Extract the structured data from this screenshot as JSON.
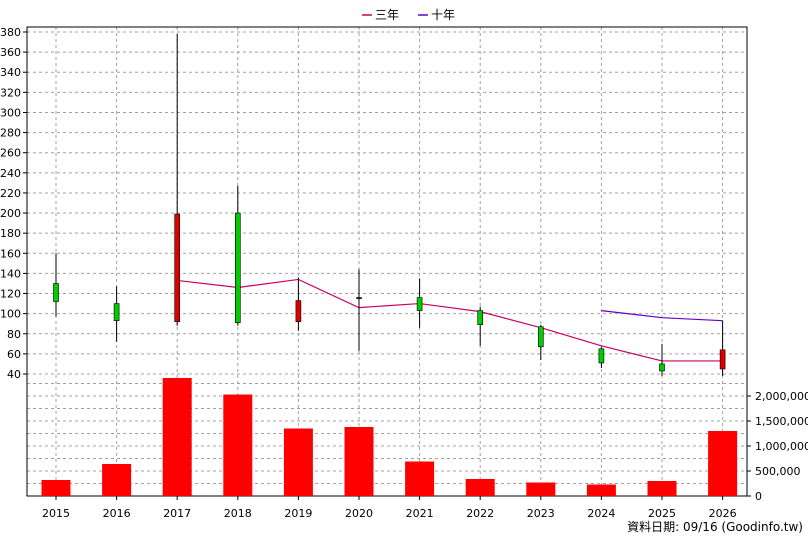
{
  "chart_data": {
    "type": "candlestick",
    "categories": [
      "2015",
      "2016",
      "2017",
      "2018",
      "2019",
      "2020",
      "2021",
      "2022",
      "2023",
      "2024",
      "2025",
      "2026"
    ],
    "legend": {
      "placement": "top-center",
      "items": [
        {
          "label": "三年",
          "color": "#cc0066"
        },
        {
          "label": "十年",
          "color": "#6600cc"
        }
      ]
    },
    "price_axis": {
      "ticks": [
        40,
        60,
        80,
        100,
        120,
        140,
        160,
        180,
        200,
        220,
        240,
        260,
        280,
        300,
        320,
        340,
        360,
        380
      ],
      "ylim": [
        40,
        380
      ]
    },
    "volume_axis": {
      "ticks": [
        "0",
        "500,000",
        "1,000,000",
        "1,500,000",
        "2,000,000"
      ],
      "tick_values": [
        0,
        500000,
        1000000,
        1500000,
        2000000
      ],
      "ylim": [
        0,
        2400000
      ]
    },
    "candles": [
      {
        "year": "2015",
        "open": 112,
        "close": 130,
        "high": 160,
        "low": 97,
        "color": "#00cc00"
      },
      {
        "year": "2016",
        "open": 93,
        "close": 110,
        "high": 127,
        "low": 72,
        "color": "#00cc00"
      },
      {
        "year": "2017",
        "open": 92,
        "close": 199,
        "high": 378,
        "low": 88,
        "color": "#dd0000"
      },
      {
        "year": "2018",
        "open": 91,
        "close": 200,
        "high": 227,
        "low": 88,
        "color": "#00cc00"
      },
      {
        "year": "2019",
        "open": 113,
        "close": 92,
        "high": 136,
        "low": 83,
        "color": "#dd0000"
      },
      {
        "year": "2020",
        "open": 116,
        "close": 115,
        "high": 144,
        "low": 63,
        "color": "#000000"
      },
      {
        "year": "2021",
        "open": 103,
        "close": 116,
        "high": 135,
        "low": 86,
        "color": "#00cc00"
      },
      {
        "year": "2022",
        "open": 89,
        "close": 103,
        "high": 107,
        "low": 68,
        "color": "#00cc00"
      },
      {
        "year": "2023",
        "open": 67,
        "close": 87,
        "high": 89,
        "low": 54,
        "color": "#00cc00"
      },
      {
        "year": "2024",
        "open": 51,
        "close": 65,
        "high": 67,
        "low": 46,
        "color": "#00cc00"
      },
      {
        "year": "2025",
        "open": 43,
        "close": 50,
        "high": 70,
        "low": 38,
        "color": "#00cc00"
      },
      {
        "year": "2026",
        "open": 64,
        "close": 45,
        "high": 93,
        "low": 38,
        "color": "#dd0000"
      }
    ],
    "series": [
      {
        "name": "三年",
        "color": "#cc0066",
        "points": [
          [
            "2017",
            133
          ],
          [
            "2018",
            126
          ],
          [
            "2019",
            134
          ],
          [
            "2020",
            106
          ],
          [
            "2021",
            110
          ],
          [
            "2022",
            102
          ],
          [
            "2023",
            86
          ],
          [
            "2024",
            68
          ],
          [
            "2025",
            53
          ],
          [
            "2026",
            53
          ]
        ]
      },
      {
        "name": "十年",
        "color": "#6600cc",
        "points": [
          [
            "2024",
            103
          ],
          [
            "2025",
            96
          ],
          [
            "2026",
            93
          ]
        ]
      }
    ],
    "volumes": [
      320000,
      640000,
      2360000,
      2030000,
      1350000,
      1380000,
      690000,
      340000,
      270000,
      230000,
      300000,
      1300000
    ],
    "volume_color": "#ff0000",
    "grid": true
  },
  "footer": {
    "source": "資料日期: 09/16  (Goodinfo.tw)"
  }
}
